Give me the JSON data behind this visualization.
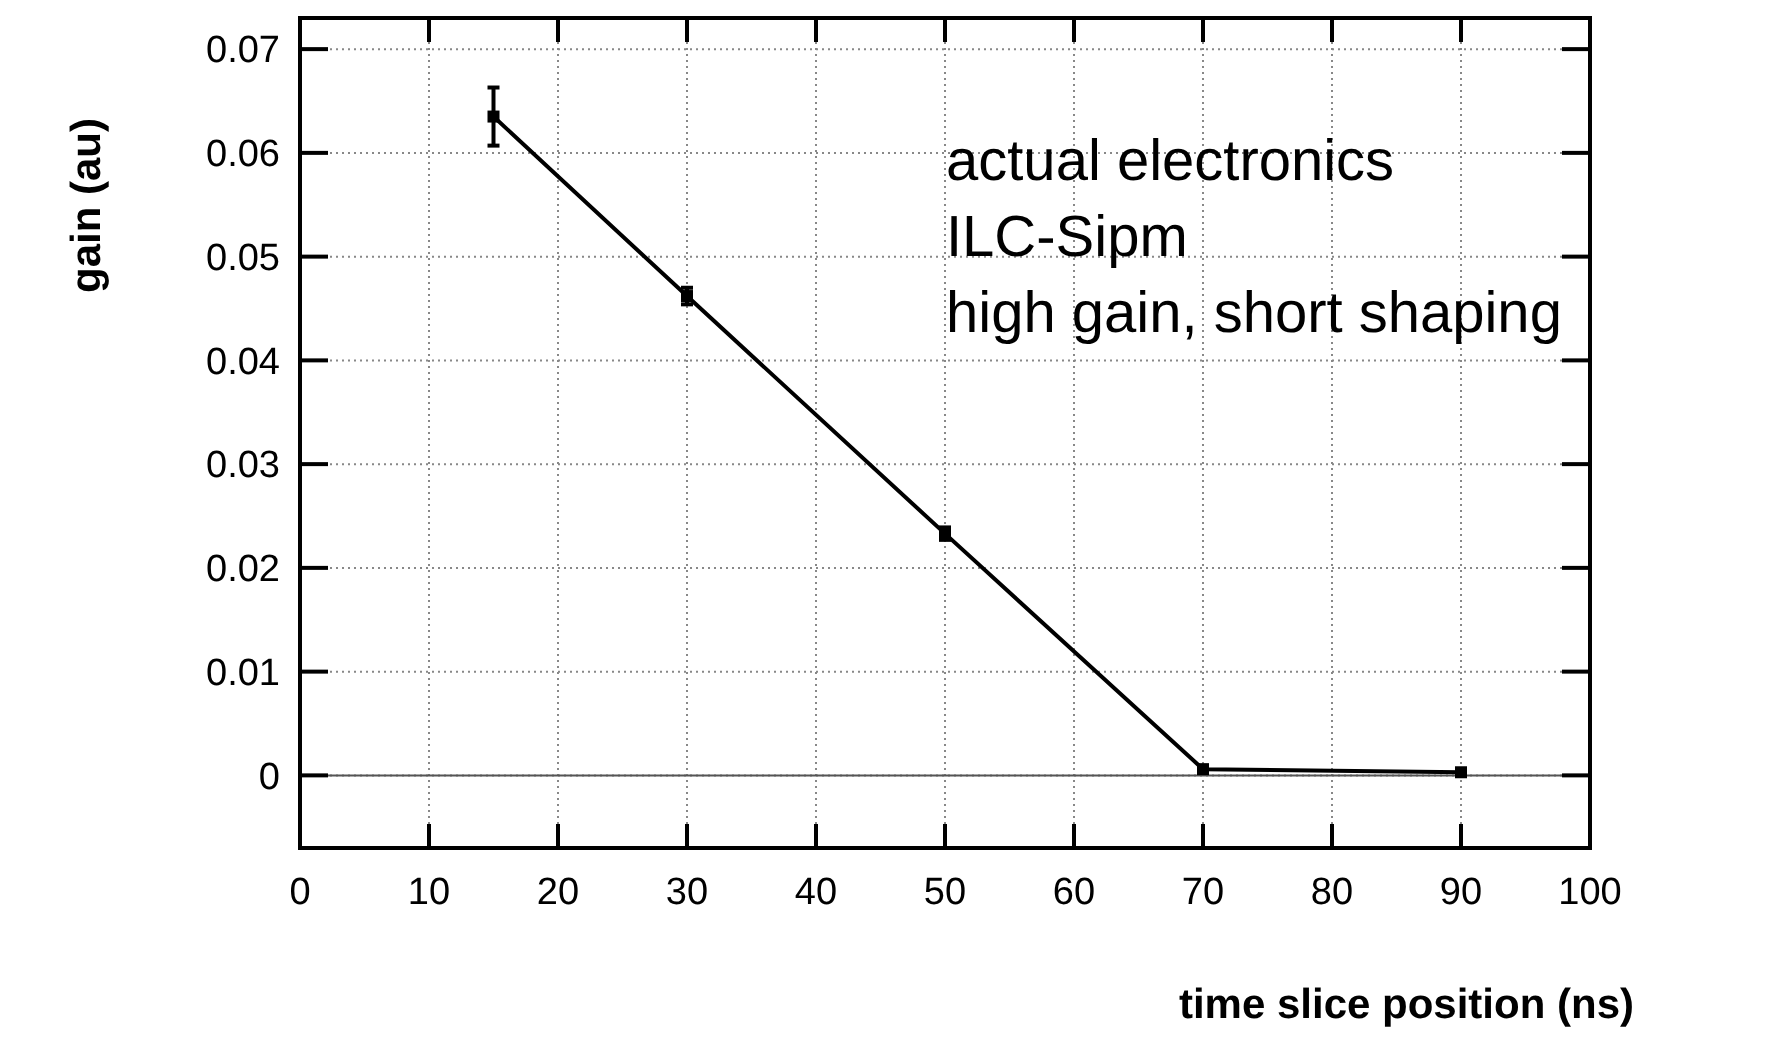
{
  "chart_data": {
    "type": "line",
    "xlabel": "time slice position (ns)",
    "ylabel": "gain (au)",
    "x": [
      15,
      30,
      50,
      70,
      90
    ],
    "series": [
      {
        "color": "#000000",
        "values": [
          0.0635,
          0.0462,
          0.0233,
          0.0006,
          0.0003
        ],
        "errors": [
          0.0028,
          0.0008,
          0.0006,
          0.0003,
          0.0002
        ]
      }
    ],
    "xlim": [
      0,
      100
    ],
    "xticks": [
      0,
      10,
      20,
      30,
      40,
      50,
      60,
      70,
      80,
      90,
      100
    ],
    "ylim": [
      -0.007,
      0.073
    ],
    "yticks": [
      0,
      0.01,
      0.02,
      0.03,
      0.04,
      0.05,
      0.06,
      0.07
    ],
    "grid": true,
    "marker": "square",
    "line_style": "solid",
    "ref_lines": [
      {
        "axis": "y",
        "value": 0,
        "color": "#555555"
      }
    ],
    "annotations": [
      "actual electronics",
      "ILC-Sipm",
      "high gain, short shaping"
    ]
  }
}
